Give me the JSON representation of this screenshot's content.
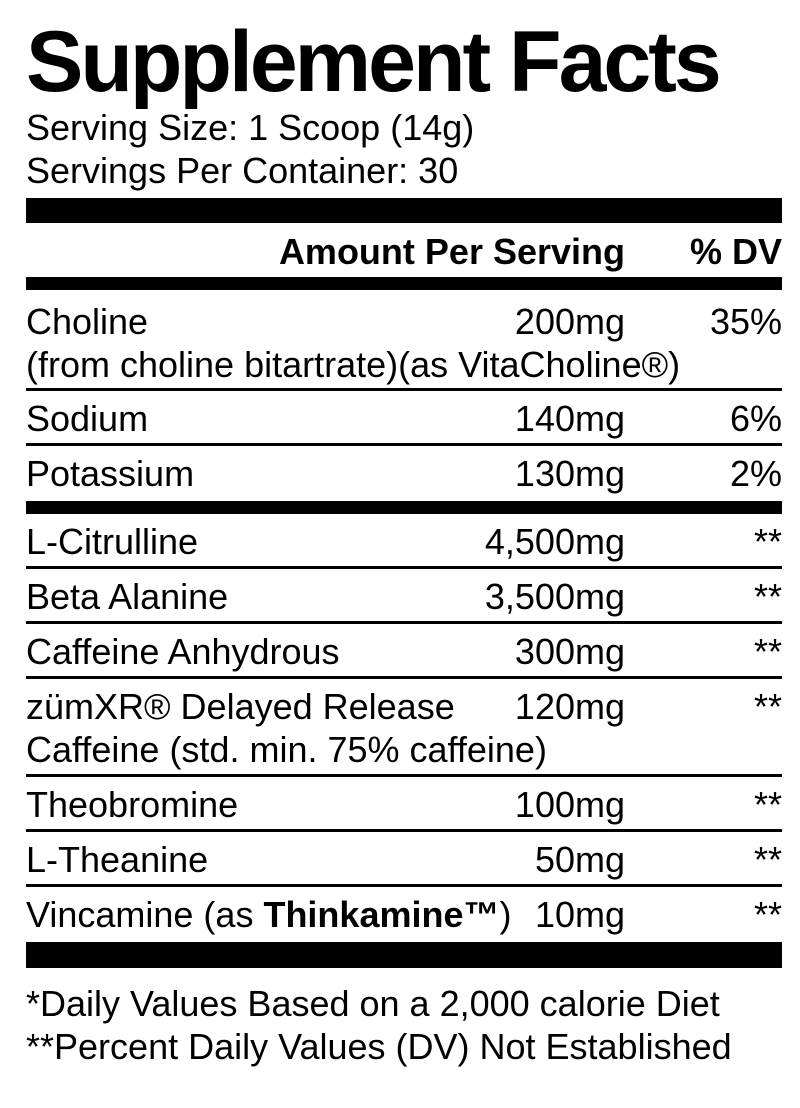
{
  "title": "Supplement Facts",
  "serving": {
    "serving_size": "Serving Size: 1 Scoop (14g)",
    "servings_per_container": "Servings Per Container: 30"
  },
  "header": {
    "amount_label": "Amount Per Serving",
    "dv_label": "% DV"
  },
  "rows": [
    {
      "name": "Choline",
      "sub": "(from choline bitartrate)(as VitaCholine®)",
      "amount": "200mg",
      "dv": "35%"
    },
    {
      "name": "Sodium",
      "amount": "140mg",
      "dv": "6%"
    },
    {
      "name": "Potassium",
      "amount": "130mg",
      "dv": "2%"
    },
    {
      "name": "L-Citrulline",
      "amount": "4,500mg",
      "dv": "**"
    },
    {
      "name": "Beta Alanine",
      "amount": "3,500mg",
      "dv": "**"
    },
    {
      "name": "Caffeine Anhydrous",
      "amount": "300mg",
      "dv": "**"
    },
    {
      "name": "zümXR® Delayed Release",
      "sub": "Caffeine (std. min. 75% caffeine)",
      "amount": "120mg",
      "dv": "**"
    },
    {
      "name": "Theobromine",
      "amount": "100mg",
      "dv": "**"
    },
    {
      "name": "L-Theanine",
      "amount": "50mg",
      "dv": "**"
    },
    {
      "name_prefix": "Vincamine (as ",
      "name_bold": "Thinkamine™",
      "name_suffix": ")",
      "amount": "10mg",
      "dv": "**"
    }
  ],
  "footnotes": {
    "daily_values": "*Daily Values Based on a 2,000 calorie Diet",
    "not_established": "**Percent Daily Values (DV) Not Established"
  },
  "colors": {
    "text": "#000000",
    "background": "#ffffff"
  }
}
